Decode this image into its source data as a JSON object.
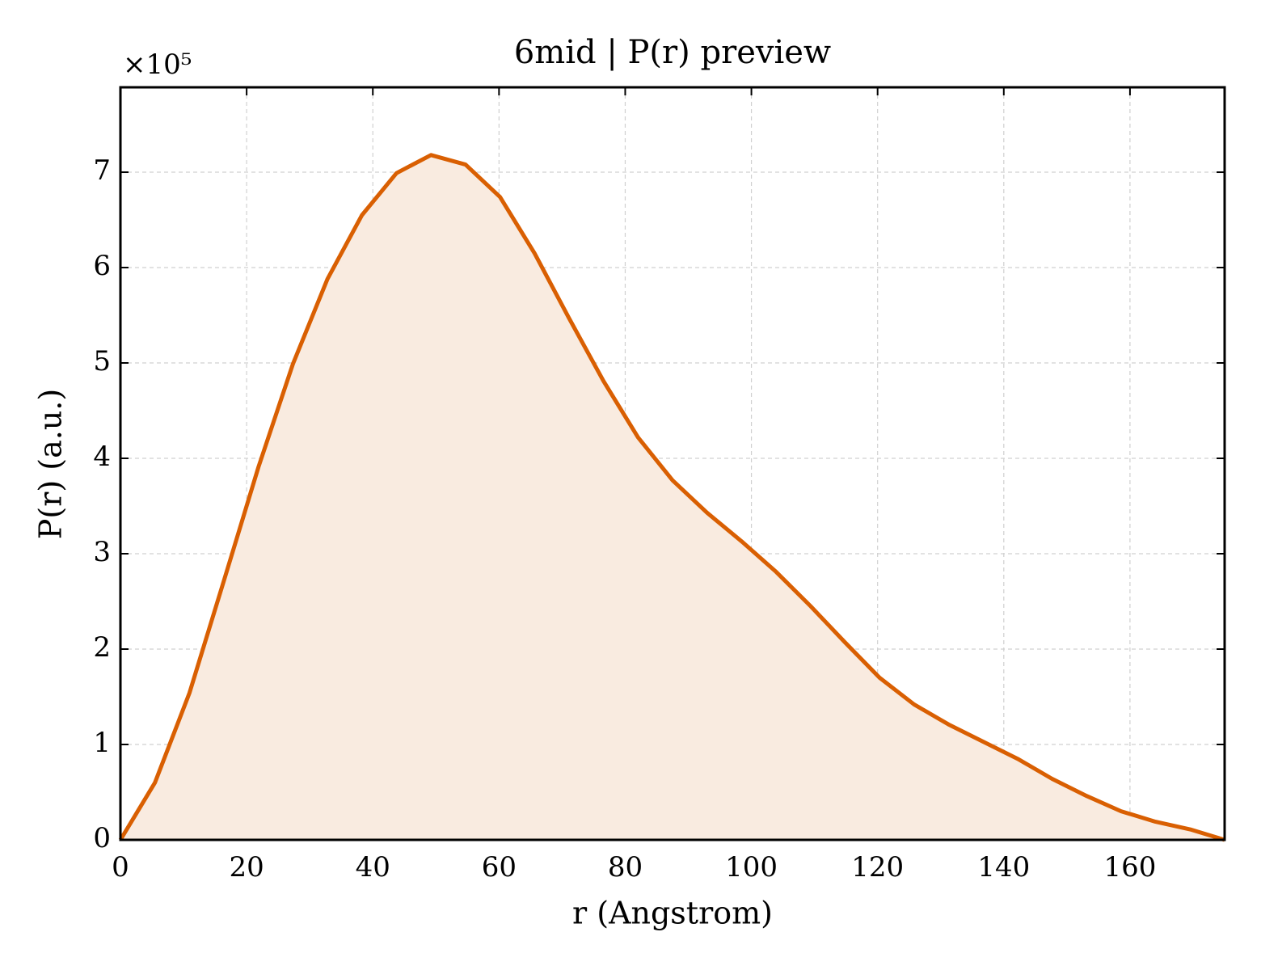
{
  "chart_data": {
    "type": "line",
    "title": "6mid | P(r) preview",
    "xlabel": "r (Angstrom)",
    "ylabel": "P(r) (a.u.)",
    "y_offset_label": "×10⁵",
    "x": [
      0,
      5.47,
      10.94,
      16.41,
      21.88,
      27.34,
      32.81,
      38.28,
      43.75,
      49.22,
      54.69,
      60.16,
      65.63,
      71.09,
      76.56,
      82.03,
      87.5,
      92.97,
      98.44,
      103.91,
      109.38,
      114.84,
      120.31,
      125.78,
      131.25,
      136.72,
      142.19,
      147.66,
      153.13,
      158.59,
      164.06,
      169.53,
      175
    ],
    "series": [
      {
        "name": "P(r)",
        "color": "#d95f02",
        "fill": "#f9ebe0",
        "values": [
          0,
          0.6,
          1.54,
          2.72,
          3.91,
          4.99,
          5.88,
          6.55,
          6.99,
          7.18,
          7.08,
          6.74,
          6.15,
          5.47,
          4.81,
          4.22,
          3.77,
          3.43,
          3.13,
          2.81,
          2.45,
          2.07,
          1.7,
          1.42,
          1.21,
          1.03,
          0.85,
          0.64,
          0.46,
          0.3,
          0.19,
          0.11,
          0
        ]
      }
    ],
    "xlim": [
      0,
      175
    ],
    "xticks": [
      0,
      20,
      40,
      60,
      80,
      100,
      120,
      140,
      160
    ],
    "ylim": [
      0,
      7.89
    ],
    "yticks": [
      0,
      1,
      2,
      3,
      4,
      5,
      6,
      7
    ],
    "grid": true
  }
}
